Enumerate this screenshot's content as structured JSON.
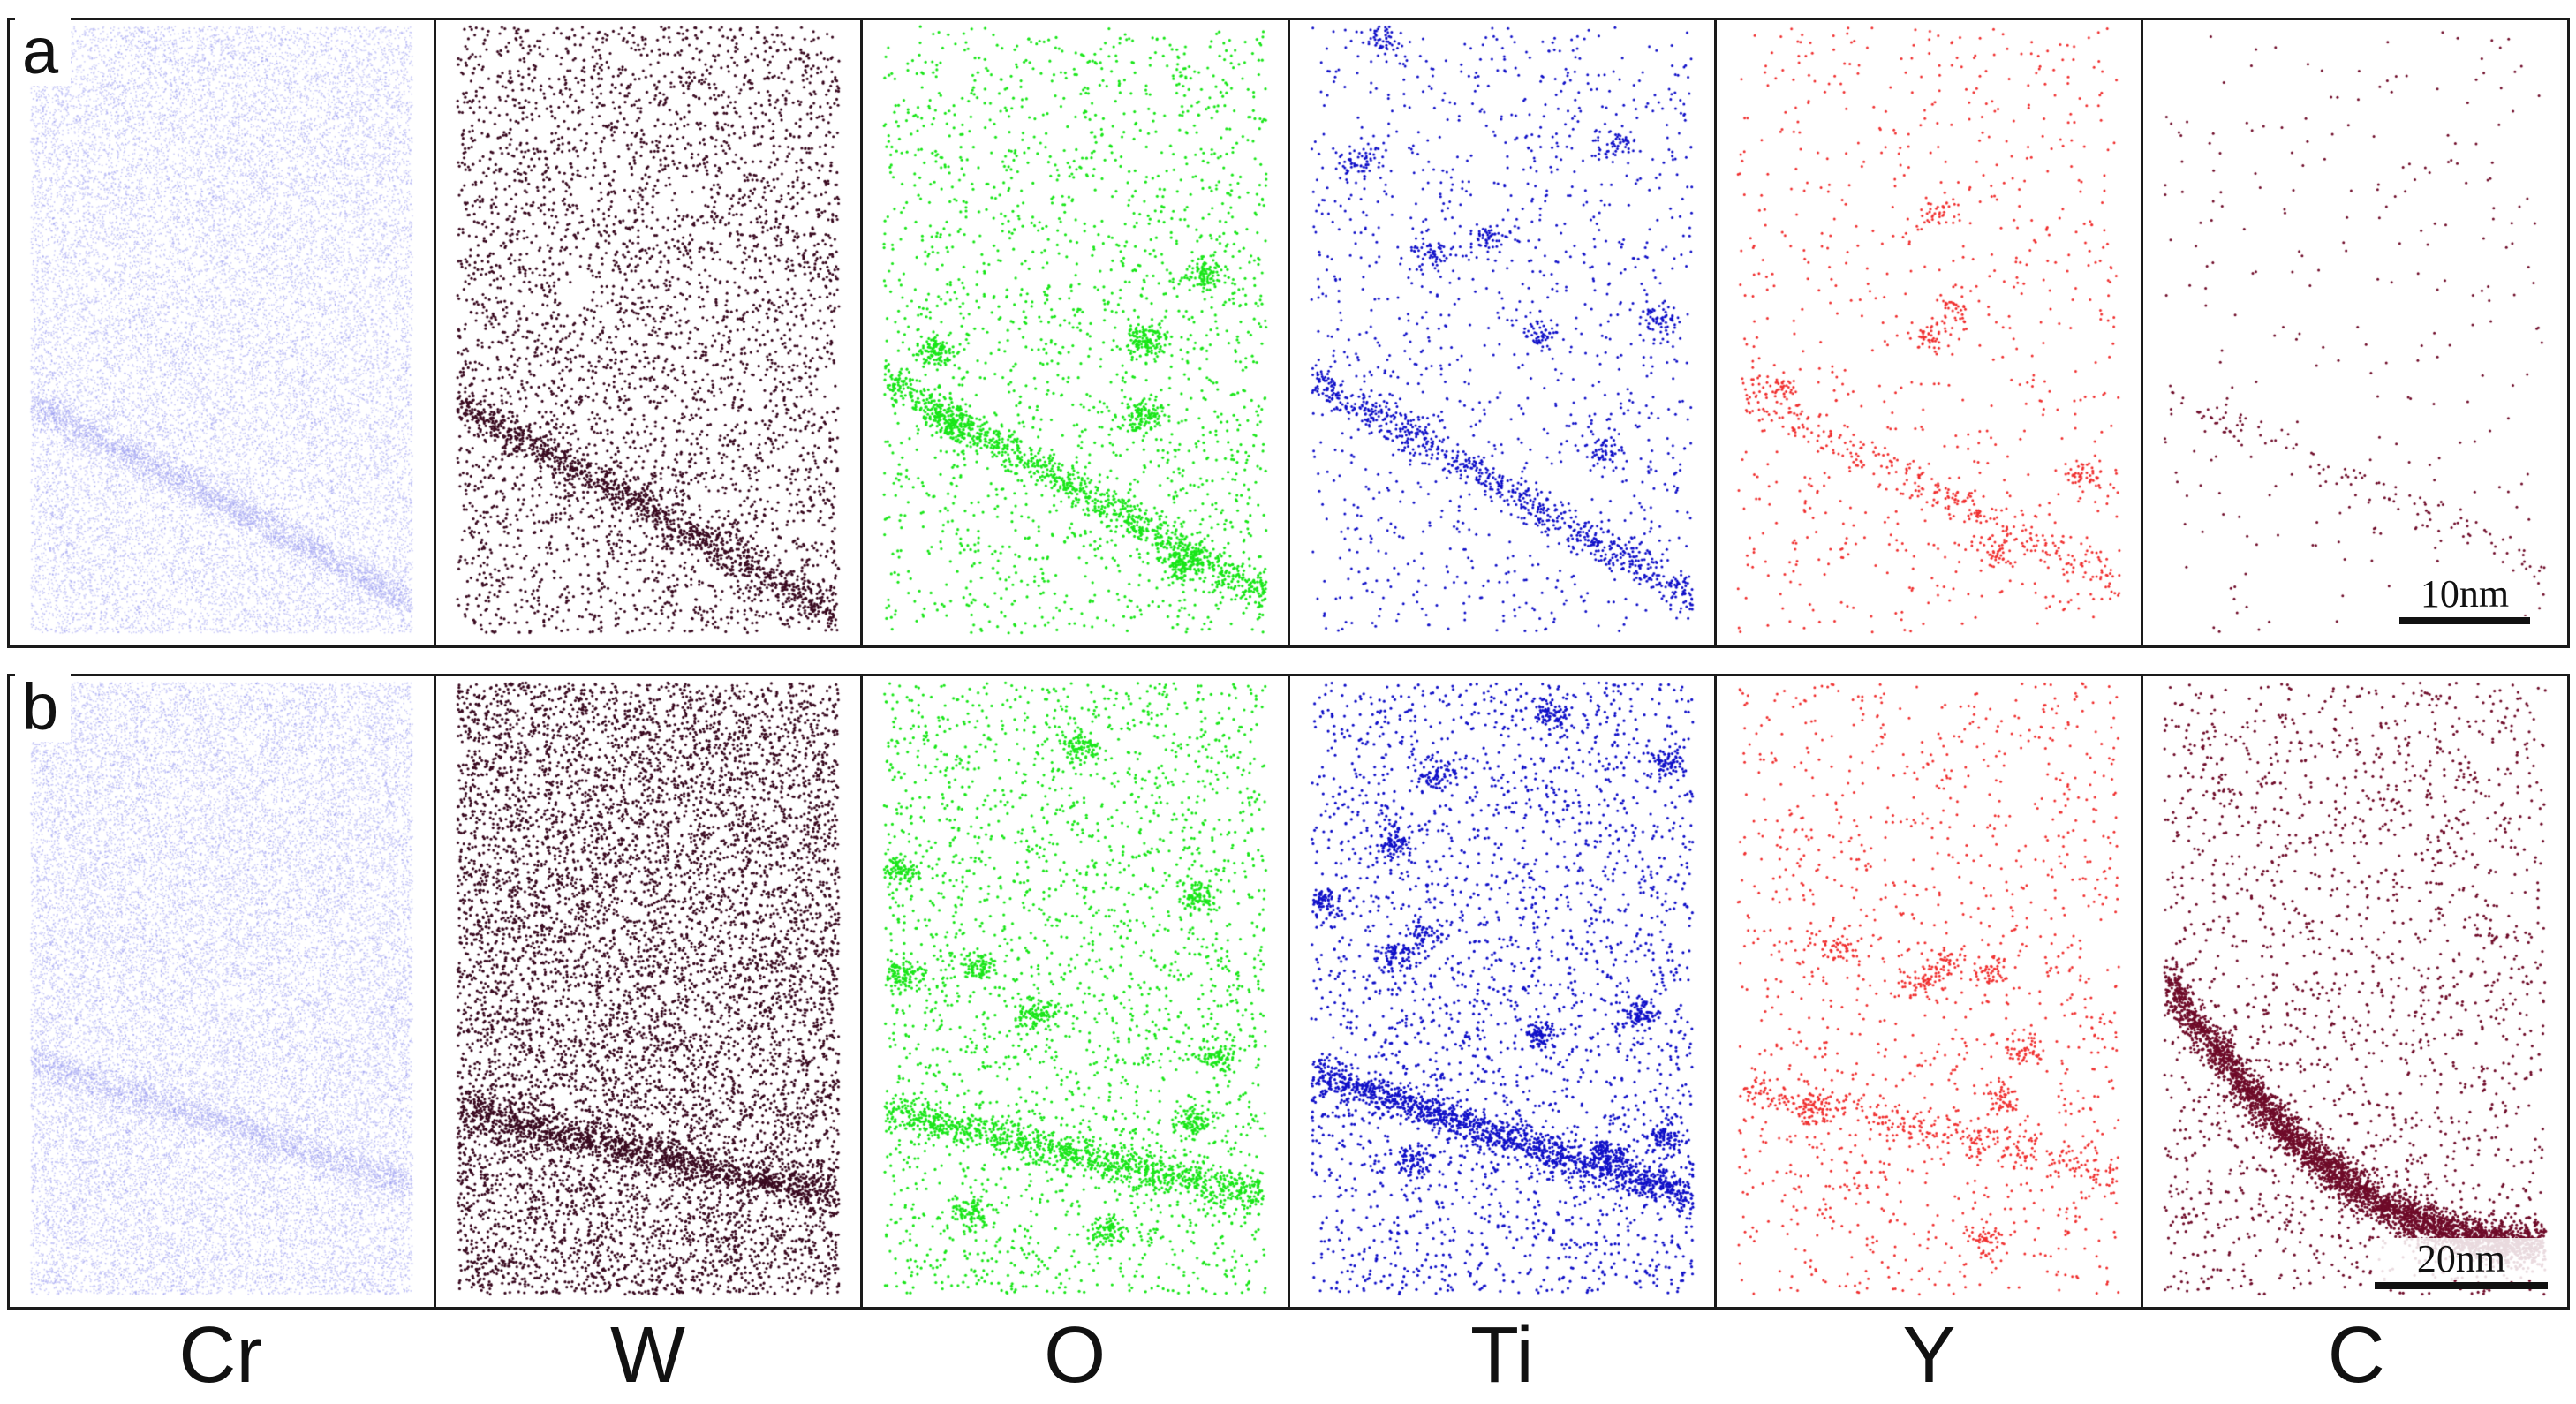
{
  "rows": [
    {
      "id": "a",
      "label": "a",
      "scale_text": "10nm"
    },
    {
      "id": "b",
      "label": "b",
      "scale_text": "20nm"
    }
  ],
  "elements": [
    {
      "key": "cr",
      "label": "Cr",
      "color": "#9a9cf0"
    },
    {
      "key": "w",
      "label": "W",
      "color": "#3a0a20"
    },
    {
      "key": "o",
      "label": "O",
      "color": "#19e619"
    },
    {
      "key": "ti",
      "label": "Ti",
      "color": "#1010c8"
    },
    {
      "key": "y",
      "label": "Y",
      "color": "#f03030"
    },
    {
      "key": "c",
      "label": "C",
      "color": "#6e0a28"
    }
  ]
}
